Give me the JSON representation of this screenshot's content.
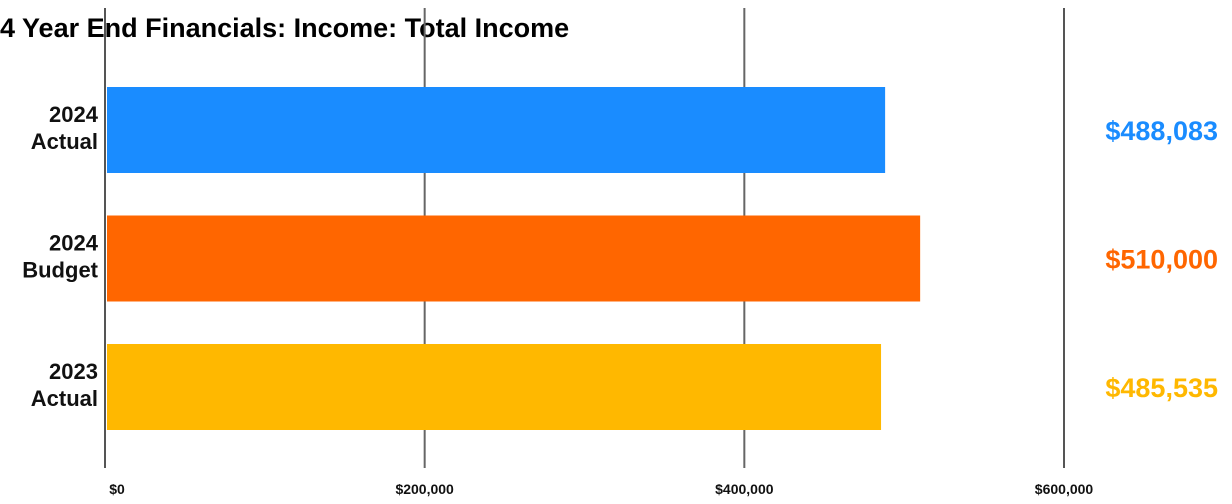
{
  "chart_data": {
    "type": "bar",
    "orientation": "horizontal",
    "title": "4 Year End Financials: Income: Total Income",
    "categories": [
      [
        "2024",
        "Actual"
      ],
      [
        "2024",
        "Budget"
      ],
      [
        "2023",
        "Actual"
      ]
    ],
    "values": [
      488083,
      510000,
      485535
    ],
    "value_labels": [
      "$488,083",
      "$510,000",
      "$485,535"
    ],
    "colors": [
      "#1a8cff",
      "#ff6600",
      "#ffb800"
    ],
    "xlim": [
      0,
      600000
    ],
    "x_ticks": [
      0,
      200000,
      400000,
      600000
    ],
    "x_tick_labels": [
      "$0",
      "$200,000",
      "$400,000",
      "$600,000"
    ],
    "xlabel": "",
    "ylabel": "",
    "grid": true,
    "legend": "none"
  }
}
